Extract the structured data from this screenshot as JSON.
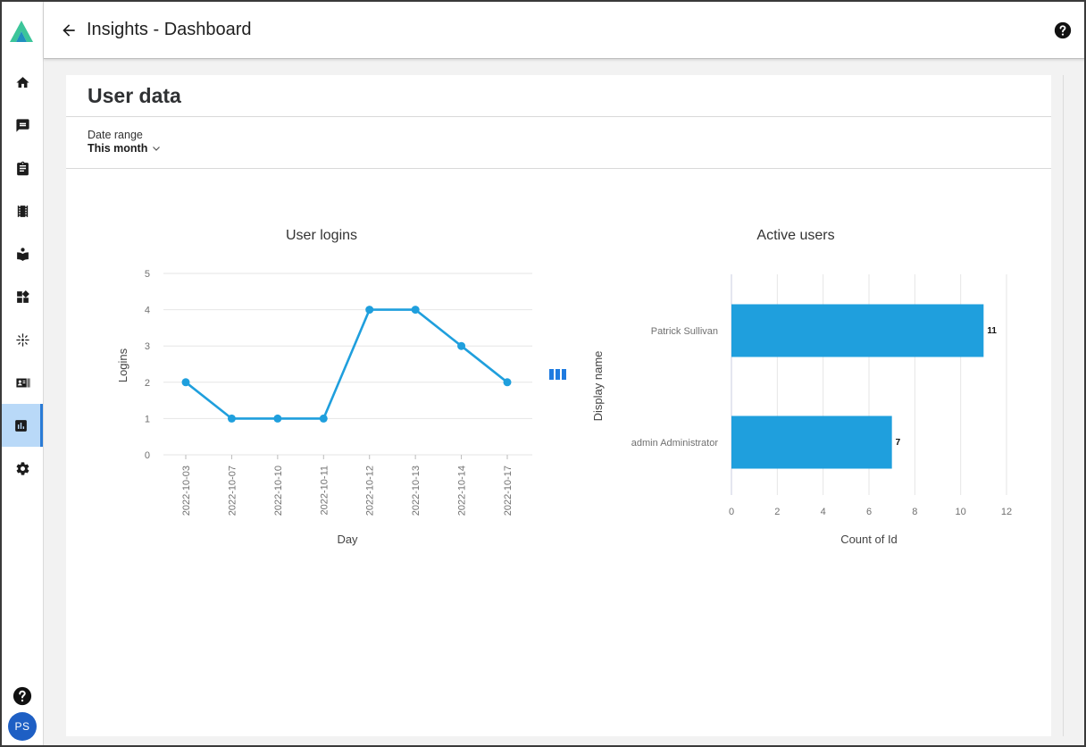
{
  "app": {
    "title": "Insights - Dashboard",
    "user_initials": "PS"
  },
  "sidebar": {
    "items": [
      {
        "name": "home-icon",
        "active": false
      },
      {
        "name": "chat-icon",
        "active": false
      },
      {
        "name": "clipboard-icon",
        "active": false
      },
      {
        "name": "film-icon",
        "active": false
      },
      {
        "name": "book-icon",
        "active": false
      },
      {
        "name": "widgets-icon",
        "active": false
      },
      {
        "name": "sparkle-icon",
        "active": false
      },
      {
        "name": "id-card-icon",
        "active": false
      },
      {
        "name": "bar-chart-icon",
        "active": true
      },
      {
        "name": "gear-icon",
        "active": false
      }
    ]
  },
  "panel": {
    "title": "User data",
    "date_range_label": "Date range",
    "date_range_value": "This month"
  },
  "colors": {
    "accent": "#1f9fdd",
    "active_nav": "#b9d9f8",
    "grid": "#e6e6e6"
  },
  "chart_data": [
    {
      "type": "line",
      "title": "User logins",
      "xlabel": "Day",
      "ylabel": "Logins",
      "x": [
        "2022-10-03",
        "2022-10-07",
        "2022-10-10",
        "2022-10-11",
        "2022-10-12",
        "2022-10-13",
        "2022-10-14",
        "2022-10-17"
      ],
      "values": [
        2,
        1,
        1,
        1,
        4,
        4,
        3,
        2
      ],
      "ylim": [
        0,
        5
      ],
      "yticks": [
        0,
        1,
        2,
        3,
        4,
        5
      ],
      "grid": true
    },
    {
      "type": "bar",
      "orientation": "horizontal",
      "title": "Active users",
      "xlabel": "Count of Id",
      "ylabel": "Display name",
      "categories": [
        "Patrick Sullivan",
        "admin Administrator"
      ],
      "values": [
        11,
        7
      ],
      "xlim": [
        0,
        12
      ],
      "xticks": [
        0,
        2,
        4,
        6,
        8,
        10,
        12
      ],
      "grid": true
    }
  ]
}
